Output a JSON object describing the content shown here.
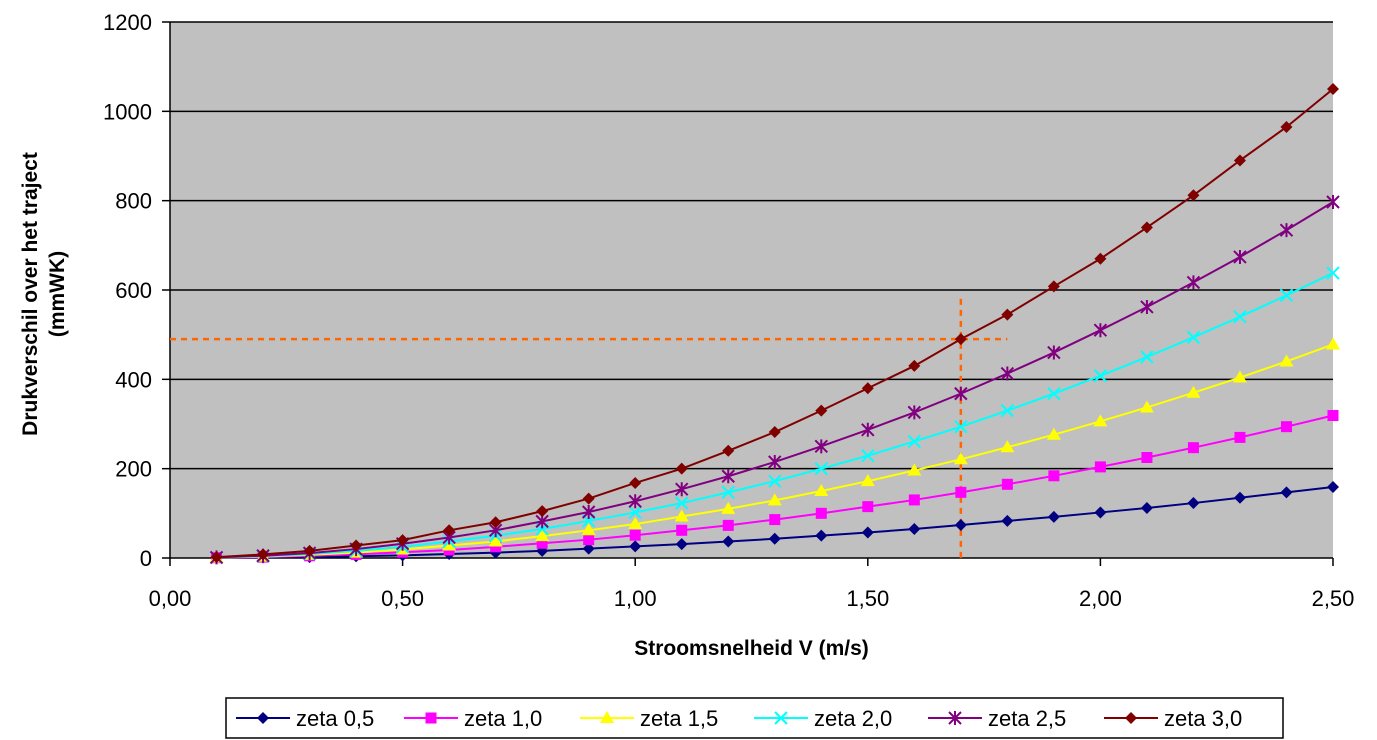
{
  "chart_data": {
    "type": "line",
    "title": "",
    "xlabel": "Stroomsnelheid V (m/s)",
    "ylabel_line1": "Drukverschil over het traject",
    "ylabel_line2": "(mmWK)",
    "xlim": [
      0,
      2.5
    ],
    "ylim": [
      0,
      1200
    ],
    "x_ticks": [
      "0,00",
      "0,50",
      "1,00",
      "1,50",
      "2,00",
      "2,50"
    ],
    "y_ticks": [
      "0",
      "200",
      "400",
      "600",
      "800",
      "1000",
      "1200"
    ],
    "grid": "horizontal",
    "plot_background": "#C0C0C0",
    "legend_position": "bottom",
    "x": [
      0.1,
      0.2,
      0.3,
      0.4,
      0.5,
      0.6,
      0.7,
      0.8,
      0.9,
      1.0,
      1.1,
      1.2,
      1.3,
      1.4,
      1.5,
      1.6,
      1.7,
      1.8,
      1.9,
      2.0,
      2.1,
      2.2,
      2.3,
      2.4,
      2.5
    ],
    "series": [
      {
        "name": "zeta 0,5",
        "color": "#000080",
        "marker": "diamond",
        "values": [
          0.3,
          1,
          2,
          4,
          6,
          9,
          12,
          16,
          21,
          26,
          31,
          37,
          43,
          50,
          57,
          65,
          74,
          83,
          92,
          102,
          112,
          123,
          135,
          147,
          159
        ]
      },
      {
        "name": "zeta 1,0",
        "color": "#FF00FF",
        "marker": "square",
        "values": [
          0.6,
          2,
          5,
          8,
          13,
          18,
          25,
          33,
          41,
          51,
          62,
          73,
          86,
          100,
          115,
          130,
          147,
          165,
          184,
          204,
          225,
          247,
          270,
          294,
          319
        ]
      },
      {
        "name": "zeta 1,5",
        "color": "#FFFF00",
        "marker": "triangle",
        "values": [
          0.8,
          3,
          7,
          12,
          19,
          28,
          37,
          49,
          62,
          76,
          93,
          110,
          129,
          150,
          172,
          196,
          221,
          248,
          276,
          306,
          337,
          370,
          404,
          440,
          478
        ]
      },
      {
        "name": "zeta 2,0",
        "color": "#00FFFF",
        "marker": "x",
        "values": [
          1,
          4,
          9,
          16,
          25,
          37,
          50,
          65,
          83,
          102,
          123,
          147,
          172,
          200,
          229,
          261,
          294,
          330,
          368,
          408,
          450,
          494,
          540,
          588,
          638
        ]
      },
      {
        "name": "zeta 2,5",
        "color": "#800080",
        "marker": "star",
        "values": [
          1.3,
          5,
          11,
          20,
          32,
          46,
          62,
          82,
          103,
          127,
          154,
          183,
          215,
          250,
          287,
          326,
          368,
          413,
          460,
          510,
          562,
          617,
          674,
          734,
          797
        ]
      },
      {
        "name": "zeta 3,0",
        "color": "#800000",
        "marker": "diamond",
        "values": [
          2,
          8,
          16,
          28,
          40,
          62,
          80,
          105,
          133,
          168,
          200,
          240,
          282,
          330,
          380,
          430,
          490,
          545,
          608,
          670,
          740,
          812,
          890,
          965,
          1050
        ]
      }
    ],
    "annotation": {
      "color": "#FF6600",
      "x": 1.7,
      "y": 490,
      "x_line_end": 1.8,
      "y_line_end": 580
    }
  }
}
